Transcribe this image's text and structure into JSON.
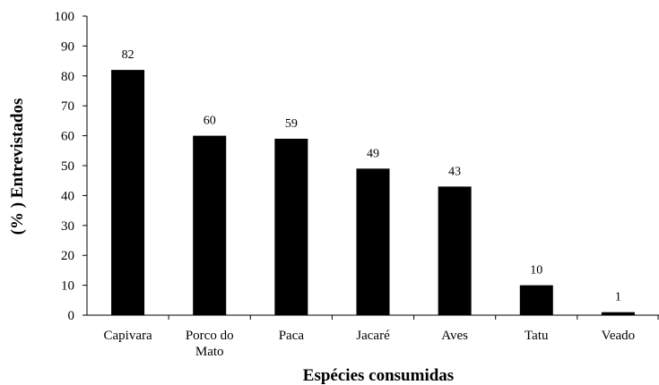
{
  "chart_data": {
    "type": "bar",
    "categories": [
      [
        "Capivara"
      ],
      [
        "Porco do",
        "Mato"
      ],
      [
        "Paca"
      ],
      [
        "Jacaré"
      ],
      [
        "Aves"
      ],
      [
        "Tatu"
      ],
      [
        "Veado"
      ]
    ],
    "values": [
      82,
      60,
      59,
      49,
      43,
      10,
      1
    ],
    "data_labels": [
      "82",
      "60",
      "59",
      "49",
      "43",
      "10",
      "1"
    ],
    "title": "",
    "xlabel": "Espécies consumidas",
    "ylabel": "(% ) Entrevistados",
    "ylim": [
      0,
      100
    ],
    "yticks": [
      "0",
      "10",
      "20",
      "30",
      "40",
      "50",
      "60",
      "70",
      "80",
      "90",
      "100"
    ],
    "grid": false,
    "legend": "none",
    "bar_color": "#000000",
    "axis_color": "#000000"
  }
}
